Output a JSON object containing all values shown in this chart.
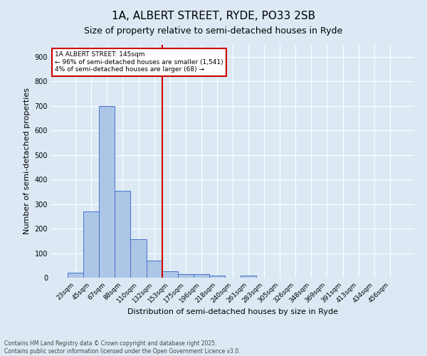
{
  "title": "1A, ALBERT STREET, RYDE, PO33 2SB",
  "subtitle": "Size of property relative to semi-detached houses in Ryde",
  "xlabel": "Distribution of semi-detached houses by size in Ryde",
  "ylabel": "Number of semi-detached properties",
  "footnote1": "Contains HM Land Registry data © Crown copyright and database right 2025.",
  "footnote2": "Contains public sector information licensed under the Open Government Licence v3.0.",
  "bin_labels": [
    "23sqm",
    "45sqm",
    "67sqm",
    "88sqm",
    "110sqm",
    "132sqm",
    "153sqm",
    "175sqm",
    "196sqm",
    "218sqm",
    "240sqm",
    "261sqm",
    "283sqm",
    "305sqm",
    "326sqm",
    "348sqm",
    "369sqm",
    "391sqm",
    "413sqm",
    "434sqm",
    "456sqm"
  ],
  "bin_values": [
    20,
    270,
    700,
    355,
    157,
    70,
    25,
    14,
    15,
    10,
    0,
    8,
    0,
    0,
    0,
    0,
    0,
    0,
    0,
    0,
    0
  ],
  "bar_color": "#adc6e8",
  "bar_edge_color": "#4472c4",
  "red_line_bin": 6,
  "red_line_color": "#cc0000",
  "annotation_text": "1A ALBERT STREET: 145sqm\n← 96% of semi-detached houses are smaller (1,541)\n4% of semi-detached houses are larger (68) →",
  "annotation_box_color": "#ffffff",
  "annotation_box_edge_color": "#cc0000",
  "ylim": [
    0,
    950
  ],
  "yticks": [
    0,
    100,
    200,
    300,
    400,
    500,
    600,
    700,
    800,
    900
  ],
  "background_color": "#dce9f5",
  "plot_bg_color": "#dce9f5",
  "grid_color": "#ffffff",
  "title_fontsize": 11,
  "subtitle_fontsize": 9,
  "ylabel_fontsize": 8,
  "xlabel_fontsize": 8,
  "tick_fontsize": 6.5,
  "annot_fontsize": 6.5,
  "footnote_fontsize": 5.5
}
